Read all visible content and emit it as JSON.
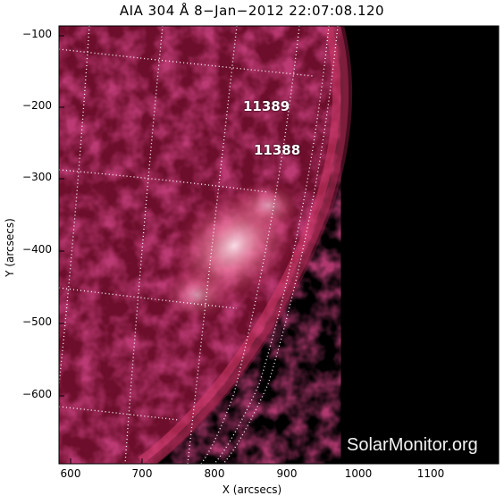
{
  "title": "AIA 304 Å  8−Jan−2012 22:07:08.120",
  "x_axis_label": "X (arcsecs)",
  "y_axis_label": "Y (arcsecs)",
  "x_ticks": [
    "600",
    "700",
    "800",
    "900",
    "1000",
    "1100"
  ],
  "y_ticks": [
    "−100",
    "−200",
    "−300",
    "−400",
    "−500",
    "−600"
  ],
  "active_regions": [
    "11389",
    "11388"
  ],
  "watermark": "SolarMonitor.org",
  "colors": {
    "solar": "#b0204a",
    "bright": "#ffd6e2",
    "background": "#000000",
    "grid": "#ffffff"
  }
}
